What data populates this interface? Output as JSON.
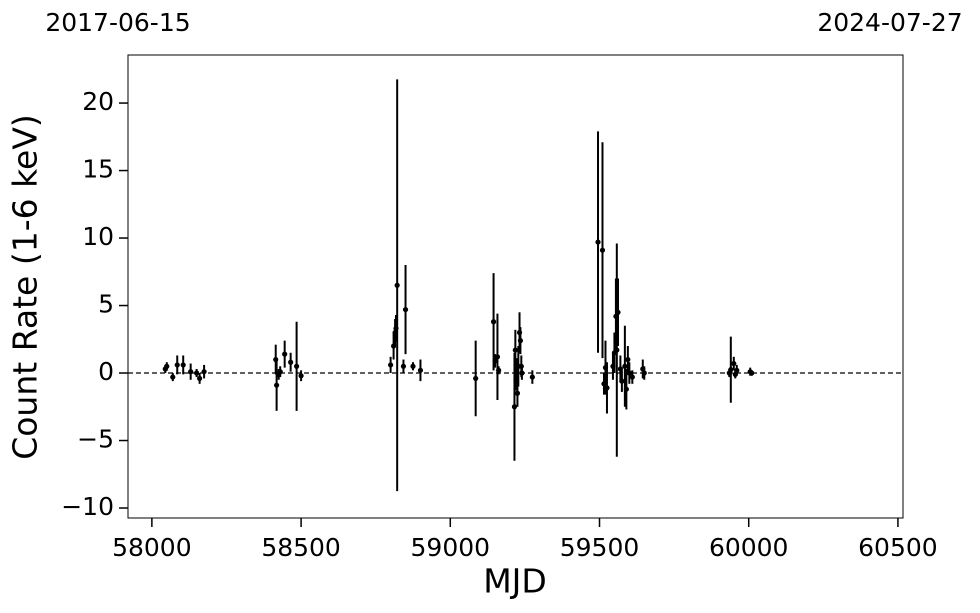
{
  "chart_data": {
    "type": "scatter",
    "annotations": [
      "2017-06-15",
      "2024-07-27"
    ],
    "xlabel": "MJD",
    "ylabel": "Count Rate (1-6 keV)",
    "xlim": [
      57920,
      60517
    ],
    "ylim": [
      -10.74,
      23.56
    ],
    "xticks": [
      58000,
      58500,
      59000,
      59500,
      60000,
      60500
    ],
    "yticks": [
      {
        "value": -10,
        "label": "−10"
      },
      {
        "value": -5,
        "label": "−5"
      },
      0,
      5,
      10,
      15,
      20
    ],
    "hline": 0,
    "series": [
      {
        "color": "#000000",
        "x": [
          58045,
          58050,
          58070,
          58085,
          58105,
          58130,
          58150,
          58160,
          58175,
          58415,
          58418,
          58425,
          58430,
          58445,
          58465,
          58485,
          58500,
          58800,
          58810,
          58815,
          58818,
          58822,
          58843,
          58850,
          58875,
          58900,
          59085,
          59145,
          59150,
          59158,
          59162,
          59215,
          59218,
          59220,
          59222,
          59225,
          59228,
          59232,
          59235,
          59238,
          59240,
          59275,
          59495,
          59510,
          59515,
          59520,
          59525,
          59545,
          59550,
          59555,
          59558,
          59562,
          59570,
          59575,
          59585,
          59590,
          59595,
          59600,
          59610,
          59645,
          59650,
          59935,
          59940,
          59950,
          59955,
          59960,
          60005,
          60010
        ],
        "values": [
          0.3,
          0.5,
          -0.3,
          0.6,
          0.6,
          0.1,
          0.0,
          -0.4,
          0.1,
          1.0,
          -0.9,
          -0.1,
          0.1,
          1.4,
          0.8,
          0.5,
          -0.2,
          0.6,
          2.0,
          3.0,
          3.3,
          6.5,
          0.5,
          4.7,
          0.5,
          0.2,
          -0.4,
          3.8,
          0.9,
          1.2,
          0.2,
          -2.5,
          1.7,
          -0.5,
          0.3,
          -1.5,
          0.5,
          3.0,
          2.4,
          0.5,
          0.0,
          -0.3,
          9.7,
          9.1,
          -0.8,
          0.4,
          -1.1,
          0.5,
          1.5,
          4.2,
          1.7,
          4.5,
          0.3,
          -0.6,
          0.5,
          -1.2,
          1.0,
          0.0,
          -0.3,
          0.3,
          0.0,
          0.0,
          0.25,
          0.7,
          -0.1,
          0.2,
          0.1,
          0.0
        ],
        "errors": [
          0.3,
          0.3,
          0.3,
          0.7,
          0.7,
          0.6,
          0.3,
          0.4,
          0.5,
          1.1,
          1.9,
          0.4,
          0.4,
          1.0,
          0.7,
          3.3,
          0.4,
          0.6,
          1.0,
          1.0,
          1.0,
          15.25,
          0.5,
          3.3,
          0.3,
          0.8,
          2.8,
          3.6,
          0.5,
          3.2,
          0.3,
          4.0,
          1.5,
          0.8,
          0.8,
          1.0,
          1.5,
          1.5,
          1.0,
          0.8,
          0.5,
          0.5,
          8.2,
          8.0,
          0.8,
          2.0,
          1.9,
          1.0,
          1.5,
          2.8,
          7.9,
          2.5,
          1.0,
          0.8,
          3.0,
          1.5,
          1.0,
          0.8,
          0.5,
          0.7,
          0.5,
          0.3,
          2.45,
          0.5,
          0.3,
          0.4,
          0.3,
          0.2
        ]
      }
    ]
  }
}
